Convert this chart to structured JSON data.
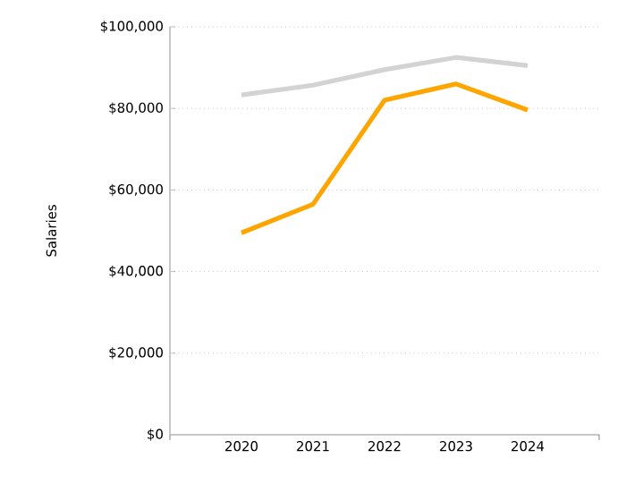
{
  "chart_data": {
    "type": "line",
    "ylabel": "Salaries",
    "categories": [
      "2020",
      "2021",
      "2022",
      "2023",
      "2024"
    ],
    "series": [
      {
        "color": "#d3d3d3",
        "values": [
          83300,
          85700,
          89500,
          92500,
          90500
        ]
      },
      {
        "color": "#ffa500",
        "values": [
          49500,
          56500,
          82000,
          86000,
          79600
        ]
      }
    ],
    "ylim": [
      0,
      100000
    ],
    "yticks": [
      {
        "value": 0,
        "label": "$0"
      },
      {
        "value": 20000,
        "label": "$20,000"
      },
      {
        "value": 40000,
        "label": "$40,000"
      },
      {
        "value": 60000,
        "label": "$60,000"
      },
      {
        "value": 80000,
        "label": "$80,000"
      },
      {
        "value": 100000,
        "label": "$100,000"
      }
    ],
    "grid": "y",
    "marker": "none",
    "line_style": "solid",
    "legend": false
  }
}
